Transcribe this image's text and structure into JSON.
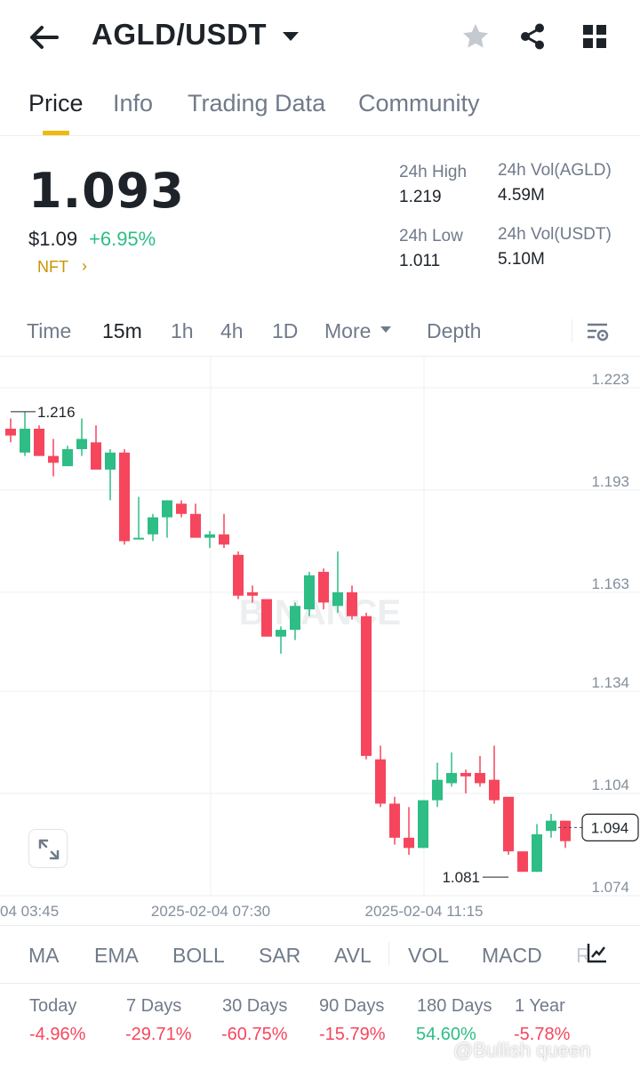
{
  "header": {
    "pair": "AGLD/USDT",
    "icons": [
      "back-arrow-icon",
      "dropdown-caret-icon",
      "star-icon",
      "share-icon",
      "grid-icon"
    ]
  },
  "tabs": [
    {
      "label": "Price",
      "active": true
    },
    {
      "label": "Info",
      "active": false
    },
    {
      "label": "Trading Data",
      "active": false
    },
    {
      "label": "Community",
      "active": false
    }
  ],
  "price": {
    "last": "1.093",
    "usd": "$1.09",
    "change": "+6.95%",
    "tag": "NFT"
  },
  "stats": {
    "high_label": "24h High",
    "high_value": "1.219",
    "low_label": "24h Low",
    "low_value": "1.011",
    "vol_base_label": "24h Vol(AGLD)",
    "vol_base_value": "4.59M",
    "vol_quote_label": "24h Vol(USDT)",
    "vol_quote_value": "5.10M"
  },
  "intervals": [
    {
      "label": "Time",
      "active": false
    },
    {
      "label": "15m",
      "active": true
    },
    {
      "label": "1h",
      "active": false
    },
    {
      "label": "4h",
      "active": false
    },
    {
      "label": "1D",
      "active": false
    },
    {
      "label": "More",
      "active": false
    },
    {
      "label": "Depth",
      "active": false
    }
  ],
  "chart_data": {
    "type": "candlestick",
    "y_ticks": [
      "1.223",
      "1.193",
      "1.163",
      "1.134",
      "1.104",
      "1.074"
    ],
    "x_ticks": [
      "04 03:45",
      "2025-02-04 07:30",
      "2025-02-04 11:15"
    ],
    "ylim": [
      1.074,
      1.223
    ],
    "high_marker": "1.216",
    "low_marker": "1.081",
    "current_price_label": "1.094",
    "watermark": "BINANCE",
    "colors": {
      "up": "#2ebd85",
      "down": "#f6465d"
    },
    "candles": [
      {
        "o": 1.211,
        "h": 1.214,
        "l": 1.207,
        "c": 1.209
      },
      {
        "o": 1.204,
        "h": 1.216,
        "l": 1.203,
        "c": 1.211
      },
      {
        "o": 1.211,
        "h": 1.212,
        "l": 1.203,
        "c": 1.203
      },
      {
        "o": 1.203,
        "h": 1.208,
        "l": 1.197,
        "c": 1.201
      },
      {
        "o": 1.2,
        "h": 1.206,
        "l": 1.2,
        "c": 1.205
      },
      {
        "o": 1.205,
        "h": 1.214,
        "l": 1.203,
        "c": 1.208
      },
      {
        "o": 1.207,
        "h": 1.212,
        "l": 1.199,
        "c": 1.199
      },
      {
        "o": 1.199,
        "h": 1.205,
        "l": 1.19,
        "c": 1.204
      },
      {
        "o": 1.204,
        "h": 1.205,
        "l": 1.177,
        "c": 1.178
      },
      {
        "o": 1.179,
        "h": 1.191,
        "l": 1.179,
        "c": 1.179
      },
      {
        "o": 1.18,
        "h": 1.186,
        "l": 1.178,
        "c": 1.185
      },
      {
        "o": 1.185,
        "h": 1.19,
        "l": 1.179,
        "c": 1.19
      },
      {
        "o": 1.189,
        "h": 1.19,
        "l": 1.185,
        "c": 1.186
      },
      {
        "o": 1.186,
        "h": 1.189,
        "l": 1.179,
        "c": 1.179
      },
      {
        "o": 1.179,
        "h": 1.181,
        "l": 1.176,
        "c": 1.18
      },
      {
        "o": 1.18,
        "h": 1.186,
        "l": 1.176,
        "c": 1.177
      },
      {
        "o": 1.174,
        "h": 1.175,
        "l": 1.161,
        "c": 1.162
      },
      {
        "o": 1.163,
        "h": 1.165,
        "l": 1.16,
        "c": 1.162
      },
      {
        "o": 1.161,
        "h": 1.161,
        "l": 1.15,
        "c": 1.15
      },
      {
        "o": 1.15,
        "h": 1.153,
        "l": 1.145,
        "c": 1.152
      },
      {
        "o": 1.152,
        "h": 1.16,
        "l": 1.149,
        "c": 1.159
      },
      {
        "o": 1.158,
        "h": 1.169,
        "l": 1.156,
        "c": 1.168
      },
      {
        "o": 1.169,
        "h": 1.17,
        "l": 1.158,
        "c": 1.16
      },
      {
        "o": 1.159,
        "h": 1.175,
        "l": 1.157,
        "c": 1.163
      },
      {
        "o": 1.163,
        "h": 1.165,
        "l": 1.155,
        "c": 1.156
      },
      {
        "o": 1.156,
        "h": 1.157,
        "l": 1.114,
        "c": 1.115
      },
      {
        "o": 1.114,
        "h": 1.118,
        "l": 1.1,
        "c": 1.101
      },
      {
        "o": 1.101,
        "h": 1.103,
        "l": 1.089,
        "c": 1.091
      },
      {
        "o": 1.091,
        "h": 1.1,
        "l": 1.086,
        "c": 1.088
      },
      {
        "o": 1.088,
        "h": 1.102,
        "l": 1.088,
        "c": 1.102
      },
      {
        "o": 1.102,
        "h": 1.113,
        "l": 1.1,
        "c": 1.108
      },
      {
        "o": 1.107,
        "h": 1.116,
        "l": 1.106,
        "c": 1.11
      },
      {
        "o": 1.11,
        "h": 1.111,
        "l": 1.104,
        "c": 1.109
      },
      {
        "o": 1.11,
        "h": 1.115,
        "l": 1.106,
        "c": 1.107
      },
      {
        "o": 1.108,
        "h": 1.118,
        "l": 1.101,
        "c": 1.102
      },
      {
        "o": 1.103,
        "h": 1.103,
        "l": 1.086,
        "c": 1.087
      },
      {
        "o": 1.087,
        "h": 1.087,
        "l": 1.081,
        "c": 1.081
      },
      {
        "o": 1.081,
        "h": 1.095,
        "l": 1.081,
        "c": 1.092
      },
      {
        "o": 1.093,
        "h": 1.098,
        "l": 1.091,
        "c": 1.096
      },
      {
        "o": 1.096,
        "h": 1.096,
        "l": 1.088,
        "c": 1.09
      }
    ]
  },
  "indicators": [
    "MA",
    "EMA",
    "BOLL",
    "SAR",
    "AVL",
    "VOL",
    "MACD",
    "R"
  ],
  "performance": [
    {
      "label": "Today",
      "value": "-4.96%",
      "trend": "down"
    },
    {
      "label": "7 Days",
      "value": "-29.71%",
      "trend": "down"
    },
    {
      "label": "30 Days",
      "value": "-60.75%",
      "trend": "down"
    },
    {
      "label": "90 Days",
      "value": "-15.79%",
      "trend": "down"
    },
    {
      "label": "180 Days",
      "value": "54.60%",
      "trend": "up"
    },
    {
      "label": "1 Year",
      "value": "-5.78%",
      "trend": "down"
    }
  ],
  "watermark_text": "@Bullish queen"
}
